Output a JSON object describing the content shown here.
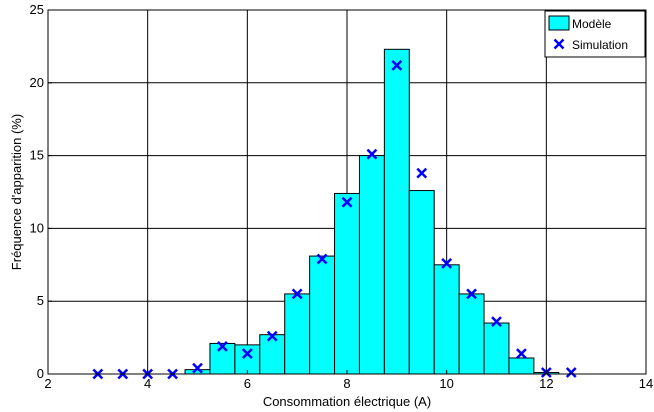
{
  "chart_data": {
    "type": "bar",
    "xlabel": "Consommation électrique (A)",
    "ylabel": "Fréquence d'apparition (%)",
    "xlim": [
      2,
      14
    ],
    "ylim": [
      0,
      25
    ],
    "xticks": [
      2,
      4,
      6,
      8,
      10,
      12,
      14
    ],
    "yticks": [
      0,
      5,
      10,
      15,
      20,
      25
    ],
    "grid": true,
    "legend_position": "top-right",
    "bar_width": 0.5,
    "series": [
      {
        "name": "Modèle",
        "kind": "bar",
        "color": "#00ffff",
        "x": [
          4.5,
          5.0,
          5.5,
          6.0,
          6.5,
          7.0,
          7.5,
          8.0,
          8.5,
          9.0,
          9.5,
          10.0,
          10.5,
          11.0,
          11.5,
          12.0
        ],
        "values": [
          0.0,
          0.3,
          2.1,
          2.0,
          2.7,
          5.5,
          8.1,
          12.4,
          15.0,
          22.3,
          12.6,
          7.5,
          5.5,
          3.5,
          1.1,
          0.1
        ]
      },
      {
        "name": "Simulation",
        "kind": "marker",
        "color": "#0000ff",
        "x": [
          3.0,
          3.5,
          4.0,
          4.5,
          5.0,
          5.5,
          6.0,
          6.5,
          7.0,
          7.5,
          8.0,
          8.5,
          9.0,
          9.5,
          10.0,
          10.5,
          11.0,
          11.5,
          12.0,
          12.5
        ],
        "values": [
          0.0,
          0.0,
          0.0,
          0.0,
          0.4,
          1.9,
          1.4,
          2.6,
          5.5,
          7.9,
          11.8,
          15.1,
          21.2,
          13.8,
          7.6,
          5.5,
          3.6,
          1.4,
          0.1,
          0.1
        ]
      }
    ]
  }
}
